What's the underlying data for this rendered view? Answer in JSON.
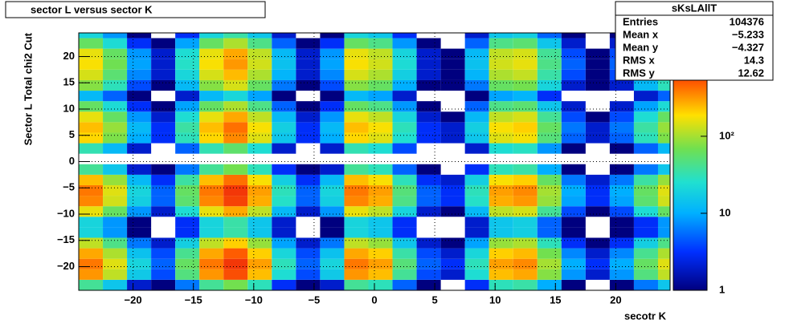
{
  "chart_data": {
    "type": "heatmap",
    "title": "sector L versus sector K",
    "x_label": "secotr K",
    "y_label": "Sector L  Total chi2 Cut",
    "xlim": [
      -24.5,
      24.5
    ],
    "ylim": [
      -24.5,
      24.5
    ],
    "zlim": [
      1,
      2200
    ],
    "z_log": true,
    "grid": true,
    "xticks": [
      {
        "value": -20,
        "label": "−20"
      },
      {
        "value": -15,
        "label": "−15"
      },
      {
        "value": -10,
        "label": "−10"
      },
      {
        "value": -5,
        "label": "−5"
      },
      0,
      5,
      10,
      15,
      20
    ],
    "yticks": [
      {
        "value": -20,
        "label": "−20"
      },
      {
        "value": -15,
        "label": "−15"
      },
      {
        "value": -10,
        "label": "−10"
      },
      {
        "value": -5,
        "label": "−5"
      },
      0,
      5,
      10,
      15,
      20
    ],
    "zticks": [
      1,
      10,
      {
        "value": 100,
        "label": "10²"
      }
    ],
    "xbins": [
      -24.5,
      -22.5,
      -20.5,
      -18.5,
      -16.5,
      -14.5,
      -12.5,
      -10.5,
      -8.5,
      -6.5,
      -4.5,
      -2.5,
      -0.5,
      1.5,
      3.5,
      5.5,
      7.5,
      9.5,
      11.5,
      13.5,
      15.5,
      17.5,
      19.5,
      21.5,
      23.5,
      24.5
    ],
    "ybins": [
      -24.5,
      -22.5,
      -20.5,
      -18.5,
      -16.5,
      -14.5,
      -12.5,
      -10.5,
      -8.5,
      -6.5,
      -4.5,
      -2.5,
      -0.5,
      1.5,
      3.5,
      5.5,
      7.5,
      9.5,
      11.5,
      13.5,
      15.5,
      17.5,
      19.5,
      21.5,
      23.5,
      24.5
    ],
    "z": [
      [
        40,
        15,
        2,
        1,
        6,
        40,
        70,
        30,
        3,
        1,
        2,
        40,
        30,
        5,
        1,
        0,
        3,
        30,
        35,
        10,
        1,
        0,
        1,
        6,
        15
      ],
      [
        320,
        120,
        16,
        4,
        48,
        320,
        560,
        240,
        24,
        4,
        16,
        320,
        240,
        40,
        4,
        2,
        24,
        240,
        280,
        80,
        8,
        2,
        8,
        48,
        120
      ],
      [
        400,
        150,
        20,
        5,
        60,
        400,
        700,
        300,
        30,
        5,
        20,
        400,
        300,
        50,
        5,
        3,
        30,
        300,
        350,
        100,
        10,
        3,
        10,
        60,
        150
      ],
      [
        280,
        105,
        14,
        4,
        42,
        280,
        490,
        210,
        21,
        4,
        14,
        280,
        210,
        35,
        4,
        2,
        21,
        210,
        245,
        70,
        7,
        2,
        7,
        42,
        105
      ],
      [
        120,
        45,
        6,
        2,
        18,
        120,
        210,
        90,
        9,
        2,
        6,
        120,
        90,
        15,
        2,
        1,
        9,
        90,
        105,
        30,
        3,
        1,
        3,
        18,
        45
      ],
      [
        20,
        8,
        1,
        0,
        3,
        20,
        35,
        15,
        2,
        0,
        1,
        20,
        15,
        3,
        0,
        0,
        2,
        15,
        18,
        5,
        1,
        0,
        1,
        3,
        8
      ],
      [
        20,
        8,
        1,
        0,
        3,
        20,
        35,
        15,
        2,
        0,
        1,
        20,
        15,
        3,
        0,
        0,
        2,
        15,
        18,
        5,
        1,
        0,
        1,
        3,
        8
      ],
      [
        160,
        60,
        8,
        2,
        24,
        160,
        280,
        120,
        12,
        2,
        8,
        160,
        120,
        20,
        2,
        1,
        12,
        120,
        140,
        40,
        4,
        1,
        4,
        24,
        60
      ],
      [
        360,
        135,
        18,
        5,
        54,
        360,
        630,
        270,
        27,
        5,
        18,
        360,
        270,
        45,
        5,
        3,
        27,
        270,
        315,
        90,
        9,
        3,
        9,
        54,
        135
      ],
      [
        400,
        150,
        20,
        5,
        60,
        400,
        700,
        300,
        30,
        5,
        20,
        400,
        300,
        50,
        5,
        3,
        30,
        300,
        350,
        100,
        10,
        3,
        10,
        60,
        150
      ],
      [
        240,
        90,
        12,
        3,
        36,
        240,
        420,
        180,
        18,
        3,
        12,
        240,
        180,
        30,
        3,
        2,
        18,
        180,
        210,
        60,
        6,
        2,
        6,
        36,
        90
      ],
      [
        40,
        15,
        2,
        1,
        6,
        40,
        70,
        30,
        3,
        1,
        2,
        40,
        30,
        5,
        1,
        0,
        3,
        30,
        35,
        10,
        1,
        0,
        1,
        6,
        15
      ],
      [
        0,
        0,
        0,
        0,
        0,
        0,
        0,
        0,
        0,
        0,
        0,
        0,
        0,
        0,
        0,
        0,
        0,
        0,
        0,
        0,
        0,
        0,
        0,
        0,
        0
      ],
      [
        32,
        12,
        2,
        0,
        5,
        32,
        56,
        24,
        2,
        0,
        2,
        32,
        24,
        4,
        0,
        0,
        2,
        24,
        28,
        8,
        1,
        0,
        1,
        5,
        12
      ],
      [
        200,
        75,
        10,
        3,
        30,
        200,
        350,
        150,
        15,
        3,
        10,
        200,
        150,
        25,
        3,
        2,
        15,
        150,
        175,
        50,
        5,
        2,
        5,
        30,
        75
      ],
      [
        240,
        90,
        12,
        3,
        36,
        240,
        420,
        180,
        18,
        3,
        12,
        240,
        180,
        30,
        3,
        2,
        18,
        180,
        210,
        60,
        6,
        2,
        6,
        36,
        90
      ],
      [
        160,
        60,
        8,
        2,
        24,
        160,
        280,
        120,
        12,
        2,
        8,
        160,
        120,
        20,
        2,
        1,
        12,
        120,
        140,
        40,
        4,
        1,
        4,
        24,
        60
      ],
      [
        60,
        23,
        3,
        1,
        9,
        60,
        105,
        45,
        5,
        1,
        3,
        60,
        45,
        8,
        1,
        0,
        5,
        45,
        53,
        15,
        2,
        0,
        2,
        9,
        23
      ],
      [
        12,
        5,
        1,
        0,
        2,
        12,
        21,
        9,
        1,
        0,
        1,
        12,
        9,
        2,
        0,
        0,
        1,
        9,
        11,
        3,
        0,
        0,
        0,
        2,
        5
      ],
      [
        80,
        30,
        4,
        1,
        12,
        80,
        140,
        60,
        6,
        1,
        4,
        80,
        60,
        10,
        1,
        1,
        6,
        60,
        70,
        20,
        2,
        1,
        2,
        12,
        30
      ],
      [
        140,
        53,
        7,
        2,
        21,
        140,
        245,
        105,
        11,
        2,
        7,
        140,
        105,
        18,
        2,
        1,
        11,
        105,
        123,
        35,
        4,
        1,
        4,
        21,
        53
      ],
      [
        180,
        68,
        9,
        2,
        27,
        180,
        315,
        135,
        14,
        2,
        9,
        180,
        135,
        23,
        2,
        1,
        14,
        135,
        158,
        45,
        5,
        1,
        5,
        27,
        68
      ],
      [
        160,
        60,
        8,
        2,
        24,
        160,
        280,
        120,
        12,
        2,
        8,
        160,
        120,
        20,
        2,
        1,
        12,
        120,
        140,
        40,
        4,
        1,
        4,
        24,
        60
      ],
      [
        60,
        23,
        3,
        1,
        9,
        60,
        105,
        45,
        5,
        1,
        3,
        60,
        45,
        8,
        1,
        0,
        5,
        45,
        53,
        15,
        2,
        0,
        2,
        9,
        23
      ],
      [
        20,
        8,
        1,
        0,
        3,
        20,
        35,
        15,
        2,
        0,
        1,
        20,
        15,
        3,
        0,
        0,
        2,
        15,
        18,
        5,
        1,
        0,
        1,
        3,
        8
      ]
    ],
    "stats": {
      "title": "sKsLAllT",
      "rows": [
        {
          "name": "Entries",
          "value": 104376
        },
        {
          "name": "Mean x",
          "value": -5.233,
          "label": "−5.233"
        },
        {
          "name": "Mean y",
          "value": -4.327,
          "label": "−4.327"
        },
        {
          "name": "RMS x",
          "value": 14.3
        },
        {
          "name": "RMS y",
          "value": 12.62
        }
      ]
    }
  }
}
